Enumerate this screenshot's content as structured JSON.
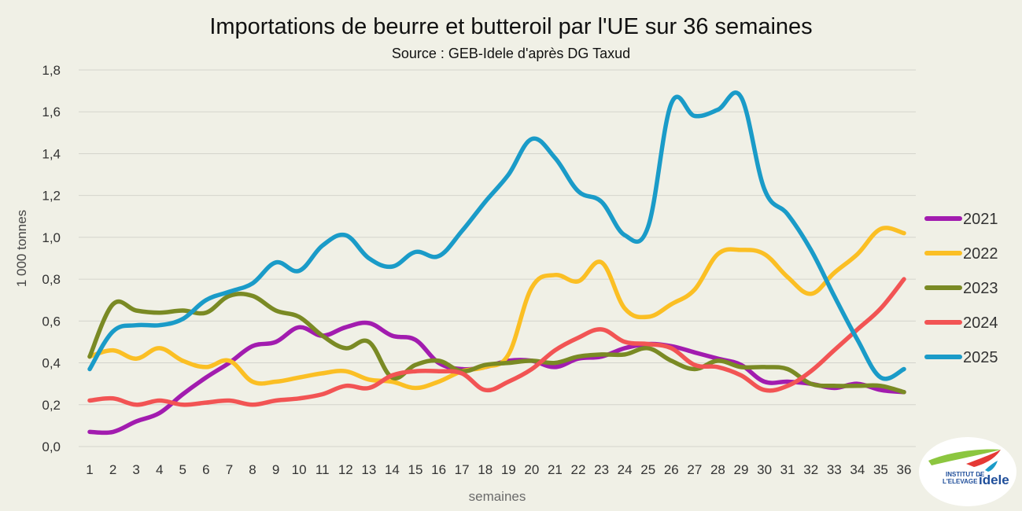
{
  "chart_data": {
    "type": "line",
    "title": "Importations de beurre et butteroil par l'UE sur 36 semaines",
    "subtitle": "Source : GEB-Idele d'après DG Taxud",
    "xlabel": "semaines",
    "ylabel": "1 000 tonnes",
    "ylim": [
      0,
      1.8
    ],
    "yticks": [
      "0,0",
      "0,2",
      "0,4",
      "0,6",
      "0,8",
      "1,0",
      "1,2",
      "1,4",
      "1,6",
      "1,8"
    ],
    "grid": true,
    "legend_position": "right",
    "x": [
      "1",
      "2",
      "3",
      "4",
      "5",
      "6",
      "7",
      "8",
      "9",
      "10",
      "11",
      "12",
      "13",
      "14",
      "15",
      "16",
      "17",
      "18",
      "19",
      "20",
      "21",
      "22",
      "23",
      "24",
      "25",
      "26",
      "27",
      "28",
      "29",
      "30",
      "31",
      "32",
      "33",
      "34",
      "35",
      "36"
    ],
    "series": [
      {
        "name": "2021",
        "color": "#a21caf",
        "values": [
          0.07,
          0.07,
          0.12,
          0.16,
          0.25,
          0.33,
          0.4,
          0.48,
          0.5,
          0.57,
          0.53,
          0.57,
          0.59,
          0.53,
          0.51,
          0.4,
          0.37,
          0.38,
          0.41,
          0.41,
          0.38,
          0.42,
          0.43,
          0.47,
          0.49,
          0.48,
          0.45,
          0.42,
          0.39,
          0.31,
          0.31,
          0.3,
          0.28,
          0.3,
          0.27,
          0.26
        ]
      },
      {
        "name": "2022",
        "color": "#fbbf24",
        "values": [
          0.43,
          0.46,
          0.42,
          0.47,
          0.41,
          0.38,
          0.41,
          0.31,
          0.31,
          0.33,
          0.35,
          0.36,
          0.32,
          0.31,
          0.28,
          0.31,
          0.36,
          0.38,
          0.44,
          0.76,
          0.82,
          0.79,
          0.88,
          0.66,
          0.62,
          0.68,
          0.75,
          0.92,
          0.94,
          0.92,
          0.81,
          0.73,
          0.83,
          0.92,
          1.04,
          1.02
        ]
      },
      {
        "name": "2023",
        "color": "#7a8a24",
        "values": [
          0.43,
          0.68,
          0.65,
          0.64,
          0.65,
          0.64,
          0.72,
          0.72,
          0.65,
          0.62,
          0.53,
          0.47,
          0.5,
          0.33,
          0.39,
          0.41,
          0.36,
          0.39,
          0.4,
          0.41,
          0.4,
          0.43,
          0.44,
          0.44,
          0.47,
          0.41,
          0.37,
          0.41,
          0.38,
          0.38,
          0.37,
          0.3,
          0.29,
          0.29,
          0.29,
          0.26
        ]
      },
      {
        "name": "2024",
        "color": "#f25454",
        "values": [
          0.22,
          0.23,
          0.2,
          0.22,
          0.2,
          0.21,
          0.22,
          0.2,
          0.22,
          0.23,
          0.25,
          0.29,
          0.28,
          0.34,
          0.36,
          0.36,
          0.35,
          0.27,
          0.31,
          0.37,
          0.46,
          0.52,
          0.56,
          0.5,
          0.49,
          0.47,
          0.39,
          0.38,
          0.34,
          0.27,
          0.29,
          0.36,
          0.46,
          0.56,
          0.66,
          0.8
        ]
      },
      {
        "name": "2025",
        "color": "#1a9bc8",
        "values": [
          0.37,
          0.55,
          0.58,
          0.58,
          0.61,
          0.7,
          0.74,
          0.78,
          0.88,
          0.84,
          0.96,
          1.01,
          0.9,
          0.86,
          0.93,
          0.91,
          1.03,
          1.17,
          1.3,
          1.47,
          1.38,
          1.22,
          1.17,
          1.01,
          1.05,
          1.64,
          1.58,
          1.61,
          1.67,
          1.23,
          1.11,
          0.94,
          0.72,
          0.51,
          0.33,
          0.37
        ]
      }
    ]
  },
  "logo": {
    "line1": "INSTITUT DE",
    "line2": "L'ELEVAGE",
    "brand": "idele"
  }
}
